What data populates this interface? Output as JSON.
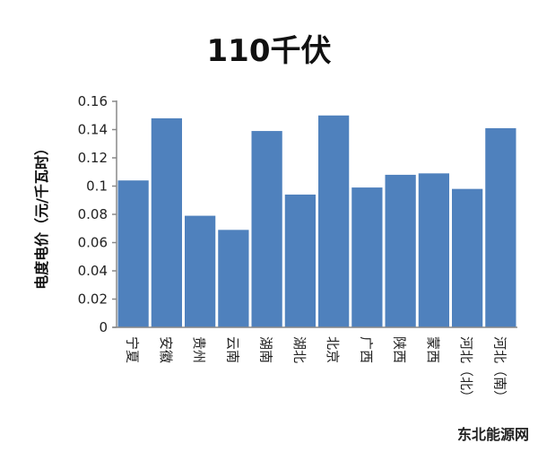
{
  "chart_data": {
    "type": "bar",
    "title": "110千伏",
    "xlabel": "",
    "ylabel": "电度电价（元/千瓦时）",
    "categories": [
      "宁夏",
      "安徽",
      "贵州",
      "云南",
      "湖南",
      "湖北",
      "北京",
      "广西",
      "陕西",
      "蒙西",
      "河北（北）",
      "河北（南）"
    ],
    "values": [
      0.104,
      0.148,
      0.079,
      0.069,
      0.139,
      0.094,
      0.15,
      0.099,
      0.108,
      0.109,
      0.098,
      0.141
    ],
    "ylim": [
      0,
      0.16
    ],
    "yticks": [
      "0",
      "0.02",
      "0.04",
      "0.06",
      "0.08",
      "0.1",
      "0.12",
      "0.14",
      "0.16"
    ],
    "grid": false,
    "bar_color": "#4f81bd"
  },
  "watermark": "东北能源网"
}
